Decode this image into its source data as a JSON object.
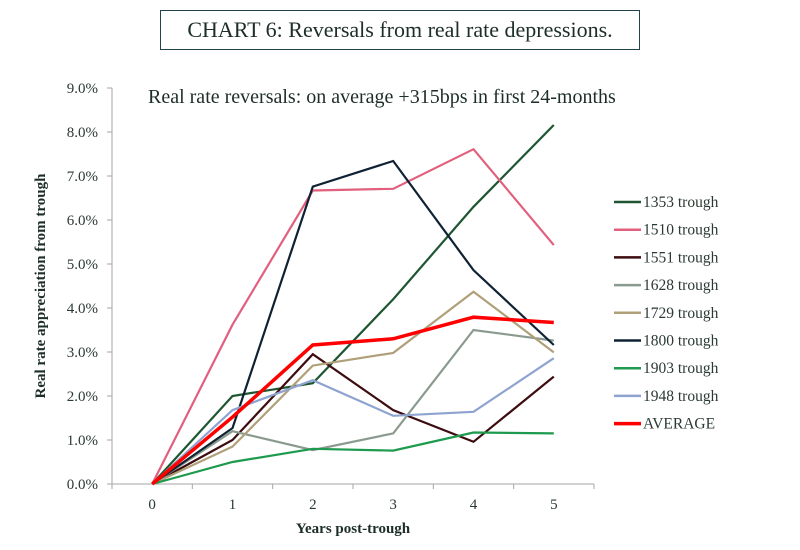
{
  "header": {
    "title": "CHART 6: Reversals from real rate depressions."
  },
  "chart_data": {
    "type": "line",
    "title": "CHART 6: Reversals from real rate depressions.",
    "subtitle": "Real rate reversals: on average +315bps in first 24-months",
    "xlabel": "Years post-trough",
    "ylabel": "Real rate appreciation from trough",
    "x": [
      0,
      1,
      2,
      3,
      4,
      5
    ],
    "x_tick_labels": [
      "0",
      "1",
      "2",
      "3",
      "4",
      "5"
    ],
    "ylim": [
      0,
      9
    ],
    "y_ticks": [
      0,
      1,
      2,
      3,
      4,
      5,
      6,
      7,
      8,
      9
    ],
    "y_tick_labels": [
      "0.0%",
      "1.0%",
      "2.0%",
      "3.0%",
      "4.0%",
      "5.0%",
      "6.0%",
      "7.0%",
      "8.0%",
      "9.0%"
    ],
    "y_unit": "%",
    "grid": false,
    "legend_position": "right",
    "series": [
      {
        "name": "1353 trough",
        "color": "#1e5631",
        "values": [
          0,
          2.0,
          2.29,
          4.2,
          6.3,
          8.16
        ]
      },
      {
        "name": "1510 trough",
        "color": "#e0607e",
        "values": [
          0,
          3.62,
          6.67,
          6.71,
          7.61,
          5.43
        ]
      },
      {
        "name": "1551 trough",
        "color": "#3d0c11",
        "values": [
          0,
          1.0,
          2.95,
          1.68,
          0.96,
          2.44
        ]
      },
      {
        "name": "1628 trough",
        "color": "#8a9a8e",
        "values": [
          0,
          1.2,
          0.77,
          1.15,
          3.5,
          3.26
        ]
      },
      {
        "name": "1729 trough",
        "color": "#b0a07a",
        "values": [
          0,
          0.85,
          2.69,
          2.98,
          4.37,
          2.99
        ]
      },
      {
        "name": "1800 trough",
        "color": "#0f2233",
        "values": [
          0,
          1.27,
          6.76,
          7.34,
          4.86,
          3.16
        ]
      },
      {
        "name": "1903 trough",
        "color": "#1e9a4e",
        "values": [
          0,
          0.5,
          0.8,
          0.76,
          1.17,
          1.15
        ]
      },
      {
        "name": "1948 trough",
        "color": "#8fa3d1",
        "values": [
          0,
          1.68,
          2.36,
          1.55,
          1.64,
          2.86
        ]
      },
      {
        "name": "AVERAGE",
        "color": "#ff0000",
        "values": [
          0,
          1.52,
          3.16,
          3.3,
          3.79,
          3.67
        ],
        "emphasis": true
      }
    ]
  }
}
